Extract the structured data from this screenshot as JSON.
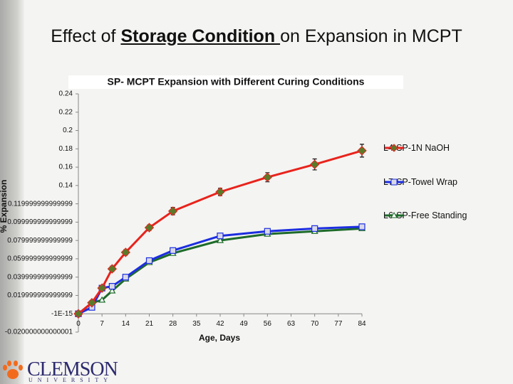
{
  "slide_title": {
    "before": "Effect of ",
    "underlined": "Storage Condition ",
    "after": "on Expansion in MCPT"
  },
  "logo": {
    "name": "CLEMSON",
    "sub": "UNIVERSITY"
  },
  "chart_data": {
    "type": "line",
    "title": "SP- MCPT Expansion with Different Curing Conditions",
    "xlabel": "Age, Days",
    "ylabel": "% Expansion",
    "x": [
      0,
      4,
      7,
      10,
      14,
      21,
      28,
      42,
      56,
      70,
      84
    ],
    "xlim": [
      0,
      84
    ],
    "xticks": [
      0,
      7,
      14,
      21,
      28,
      35,
      42,
      49,
      56,
      63,
      70,
      77,
      84
    ],
    "ylim": [
      -0.02,
      0.24
    ],
    "yticks": [
      {
        "value": -0.02,
        "label": "-0.020000000000001"
      },
      {
        "value": -1e-15,
        "label": "-1E-15"
      },
      {
        "value": 0.02,
        "label": "0.019999999999999"
      },
      {
        "value": 0.04,
        "label": "0.039999999999999"
      },
      {
        "value": 0.06,
        "label": "0.059999999999999"
      },
      {
        "value": 0.08,
        "label": "0.079999999999999"
      },
      {
        "value": 0.1,
        "label": "0.099999999999999"
      },
      {
        "value": 0.12,
        "label": "0.119999999999999"
      },
      0.14,
      0.16,
      0.18,
      0.2,
      0.22,
      0.24
    ],
    "series": [
      {
        "name": "L4-SP-1N NaOH",
        "color": "#e8231c",
        "marker": "diamond",
        "marker_color": "#5a7a2a",
        "values": [
          0,
          0.012,
          0.028,
          0.049,
          0.067,
          0.094,
          0.112,
          0.133,
          0.149,
          0.163,
          0.178
        ],
        "errors": [
          0.002,
          0.002,
          0.002,
          0.003,
          0.003,
          0.003,
          0.004,
          0.004,
          0.005,
          0.006,
          0.007
        ]
      },
      {
        "name": "L7-SP-Towel Wrap",
        "color": "#1c2ee0",
        "marker": "square",
        "marker_color": "#d8d8e8",
        "values": [
          0,
          0.007,
          0.028,
          0.03,
          0.04,
          0.058,
          0.069,
          0.085,
          0.09,
          0.093,
          0.095
        ]
      },
      {
        "name": "L6-SP-Free Standing",
        "color": "#1d6b2a",
        "marker": "triangle",
        "marker_color": "#ffffff",
        "values": [
          0,
          0.012,
          0.015,
          0.025,
          0.038,
          0.056,
          0.066,
          0.08,
          0.087,
          0.09,
          0.093
        ]
      }
    ]
  }
}
